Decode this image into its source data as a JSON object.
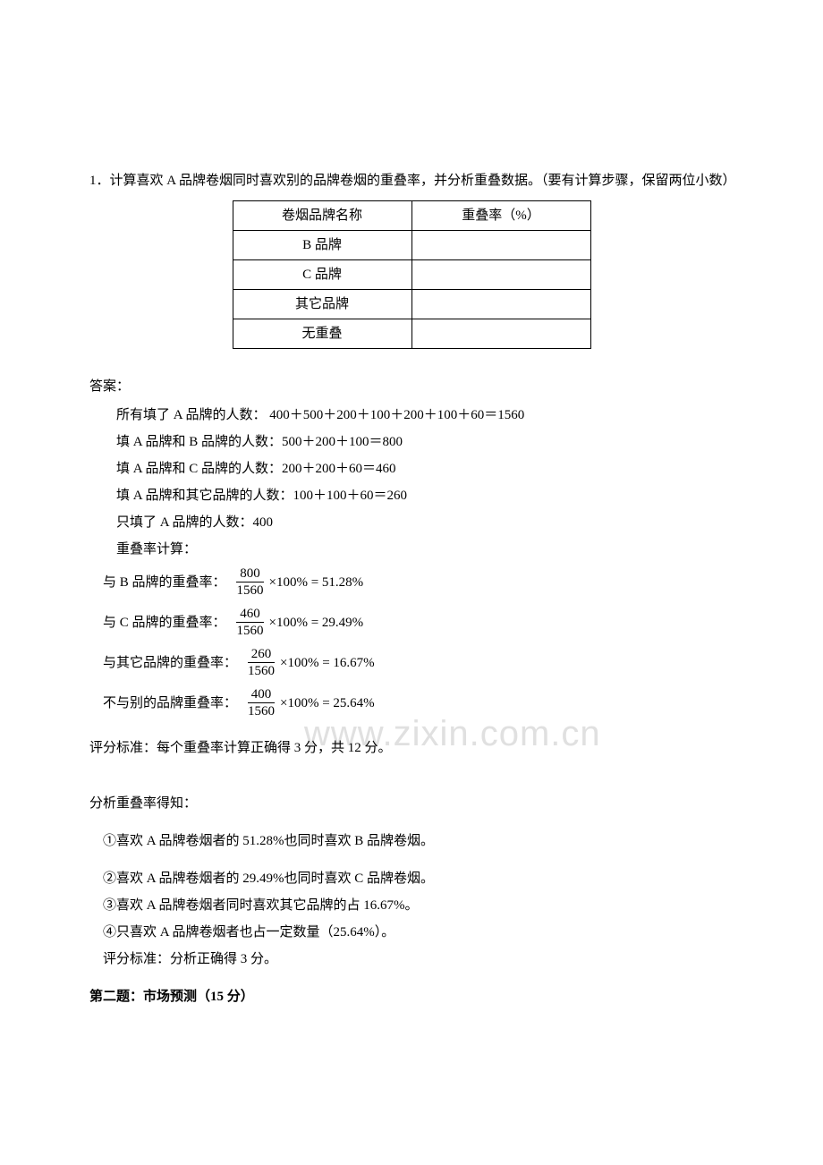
{
  "question": {
    "text": "1．计算喜欢 A 品牌卷烟同时喜欢别的品牌卷烟的重叠率，并分析重叠数据。（要有计算步骤，保留两位小数）"
  },
  "table": {
    "headers": [
      "卷烟品牌名称",
      "重叠率（%）"
    ],
    "rows": [
      [
        "B 品牌",
        ""
      ],
      [
        "C 品牌",
        ""
      ],
      [
        "其它品牌",
        ""
      ],
      [
        "无重叠",
        ""
      ]
    ]
  },
  "answer_label": "答案：",
  "lines": [
    "所有填了 A 品牌的人数：   400＋500＋200＋100＋200＋100＋60＝1560",
    "填 A 品牌和 B 品牌的人数：500＋200＋100＝800",
    "填 A 品牌和 C 品牌的人数：200＋200＋60＝460",
    "填 A 品牌和其它品牌的人数：100＋100＋60＝260",
    "只填了 A 品牌的人数：400",
    "重叠率计算："
  ],
  "formulas": [
    {
      "label": "与 B 品牌的重叠率：",
      "num": "800",
      "den": "1560",
      "rest": "×100% = 51.28%"
    },
    {
      "label": "与 C 品牌的重叠率：",
      "num": "460",
      "den": "1560",
      "rest": "×100% = 29.49%"
    },
    {
      "label": "与其它品牌的重叠率：",
      "num": "260",
      "den": "1560",
      "rest": "×100% = 16.67%"
    },
    {
      "label": "不与别的品牌重叠率：",
      "num": "400",
      "den": "1560",
      "rest": "×100% = 25.64%"
    }
  ],
  "scoring1": "评分标准：每个重叠率计算正确得 3 分，共 12 分。",
  "analysis_label": "分析重叠率得知：",
  "analysis": [
    "①喜欢 A 品牌卷烟者的 51.28%也同时喜欢 B 品牌卷烟。",
    "②喜欢 A 品牌卷烟者的 29.49%也同时喜欢 C 品牌卷烟。",
    "③喜欢 A 品牌卷烟者同时喜欢其它品牌的占 16.67%。",
    "④只喜欢 A 品牌卷烟者也占一定数量（25.64%）。"
  ],
  "scoring2": "评分标准：分析正确得 3 分。",
  "question2": "第二题：市场预测（15 分）",
  "watermark": "www.zixin.com.cn"
}
